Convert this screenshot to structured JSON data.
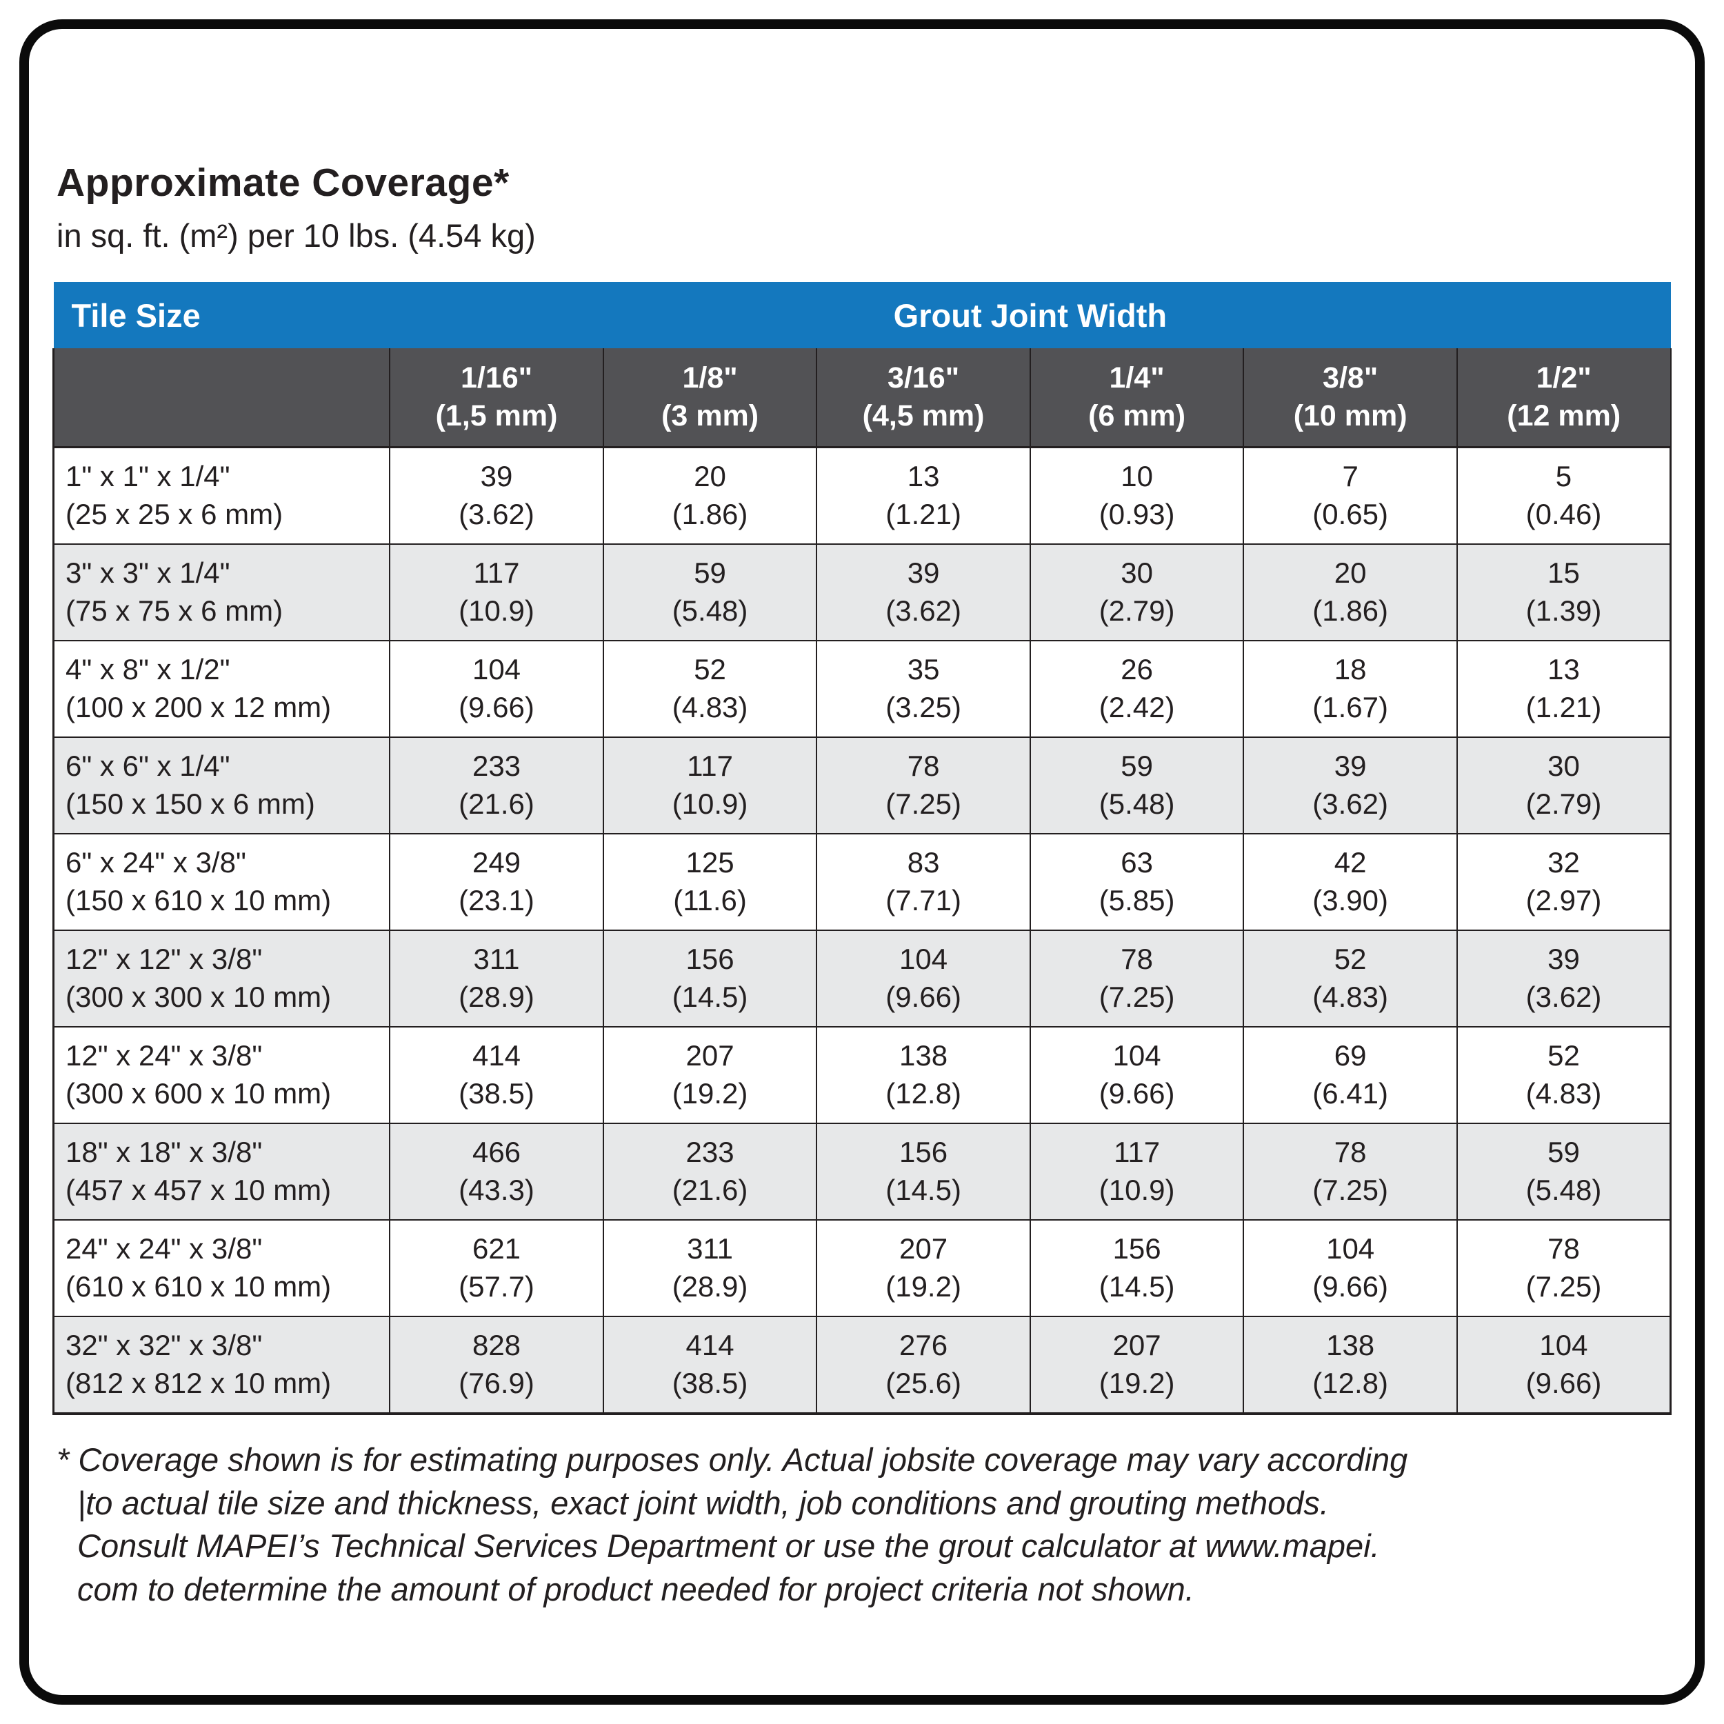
{
  "page": {
    "title": "Approximate Coverage*",
    "subtitle": "in sq. ft. (m²) per 10 lbs. (4.54 kg)"
  },
  "table": {
    "corner_label": "Tile Size",
    "group_label": "Grout Joint Width",
    "columns": [
      {
        "size": "1/16\"",
        "metric": "(1,5 mm)"
      },
      {
        "size": "1/8\"",
        "metric": "(3 mm)"
      },
      {
        "size": "3/16\"",
        "metric": "(4,5 mm)"
      },
      {
        "size": "1/4\"",
        "metric": "(6 mm)"
      },
      {
        "size": "3/8\"",
        "metric": "(10 mm)"
      },
      {
        "size": "1/2\"",
        "metric": "(12 mm)"
      }
    ],
    "rows": [
      {
        "tile": "1\" x 1\" x 1/4\"",
        "tile_metric": "(25 x 25 x 6 mm)",
        "values": [
          [
            "39",
            "(3.62)"
          ],
          [
            "20",
            "(1.86)"
          ],
          [
            "13",
            "(1.21)"
          ],
          [
            "10",
            "(0.93)"
          ],
          [
            "7",
            "(0.65)"
          ],
          [
            "5",
            "(0.46)"
          ]
        ]
      },
      {
        "tile": "3\" x 3\" x 1/4\"",
        "tile_metric": "(75 x 75 x 6 mm)",
        "values": [
          [
            "117",
            "(10.9)"
          ],
          [
            "59",
            "(5.48)"
          ],
          [
            "39",
            "(3.62)"
          ],
          [
            "30",
            "(2.79)"
          ],
          [
            "20",
            "(1.86)"
          ],
          [
            "15",
            "(1.39)"
          ]
        ]
      },
      {
        "tile": "4\" x 8\" x 1/2\"",
        "tile_metric": "(100 x 200 x 12 mm)",
        "values": [
          [
            "104",
            "(9.66)"
          ],
          [
            "52",
            "(4.83)"
          ],
          [
            "35",
            "(3.25)"
          ],
          [
            "26",
            "(2.42)"
          ],
          [
            "18",
            "(1.67)"
          ],
          [
            "13",
            "(1.21)"
          ]
        ]
      },
      {
        "tile": "6\" x 6\" x 1/4\"",
        "tile_metric": "(150 x 150 x 6 mm)",
        "values": [
          [
            "233",
            "(21.6)"
          ],
          [
            "117",
            "(10.9)"
          ],
          [
            "78",
            "(7.25)"
          ],
          [
            "59",
            "(5.48)"
          ],
          [
            "39",
            "(3.62)"
          ],
          [
            "30",
            "(2.79)"
          ]
        ]
      },
      {
        "tile": "6\" x 24\" x 3/8\"",
        "tile_metric": "(150 x 610 x 10 mm)",
        "values": [
          [
            "249",
            "(23.1)"
          ],
          [
            "125",
            "(11.6)"
          ],
          [
            "83",
            "(7.71)"
          ],
          [
            "63",
            "(5.85)"
          ],
          [
            "42",
            "(3.90)"
          ],
          [
            "32",
            "(2.97)"
          ]
        ]
      },
      {
        "tile": "12\" x 12\" x 3/8\"",
        "tile_metric": "(300 x 300 x 10 mm)",
        "values": [
          [
            "311",
            "(28.9)"
          ],
          [
            "156",
            "(14.5)"
          ],
          [
            "104",
            "(9.66)"
          ],
          [
            "78",
            "(7.25)"
          ],
          [
            "52",
            "(4.83)"
          ],
          [
            "39",
            "(3.62)"
          ]
        ]
      },
      {
        "tile": "12\" x 24\" x 3/8\"",
        "tile_metric": "(300 x 600 x 10 mm)",
        "values": [
          [
            "414",
            "(38.5)"
          ],
          [
            "207",
            "(19.2)"
          ],
          [
            "138",
            "(12.8)"
          ],
          [
            "104",
            "(9.66)"
          ],
          [
            "69",
            "(6.41)"
          ],
          [
            "52",
            "(4.83)"
          ]
        ]
      },
      {
        "tile": "18\" x 18\" x 3/8\"",
        "tile_metric": "(457 x 457 x 10 mm)",
        "values": [
          [
            "466",
            "(43.3)"
          ],
          [
            "233",
            "(21.6)"
          ],
          [
            "156",
            "(14.5)"
          ],
          [
            "117",
            "(10.9)"
          ],
          [
            "78",
            "(7.25)"
          ],
          [
            "59",
            "(5.48)"
          ]
        ]
      },
      {
        "tile": "24\" x 24\" x 3/8\"",
        "tile_metric": "(610 x 610 x 10 mm)",
        "values": [
          [
            "621",
            "(57.7)"
          ],
          [
            "311",
            "(28.9)"
          ],
          [
            "207",
            "(19.2)"
          ],
          [
            "156",
            "(14.5)"
          ],
          [
            "104",
            "(9.66)"
          ],
          [
            "78",
            "(7.25)"
          ]
        ]
      },
      {
        "tile": "32\" x 32\" x 3/8\"",
        "tile_metric": "(812 x 812 x 10 mm)",
        "values": [
          [
            "828",
            "(76.9)"
          ],
          [
            "414",
            "(38.5)"
          ],
          [
            "276",
            "(25.6)"
          ],
          [
            "207",
            "(19.2)"
          ],
          [
            "138",
            "(12.8)"
          ],
          [
            "104",
            "(9.66)"
          ]
        ]
      }
    ]
  },
  "footnote": "* Coverage shown is for estimating purposes only. Actual jobsite coverage may vary according\n|to actual tile size and thickness, exact joint width, job conditions and grouting methods.\nConsult MAPEI’s Technical Services Department or use the grout calculator at www.mapei.\ncom to determine the amount of product needed for project criteria not shown.",
  "colors": {
    "header_blue": "#1478be",
    "header_gray": "#525255",
    "row_alt_gray": "#e7e8e9",
    "text": "#231f20"
  }
}
